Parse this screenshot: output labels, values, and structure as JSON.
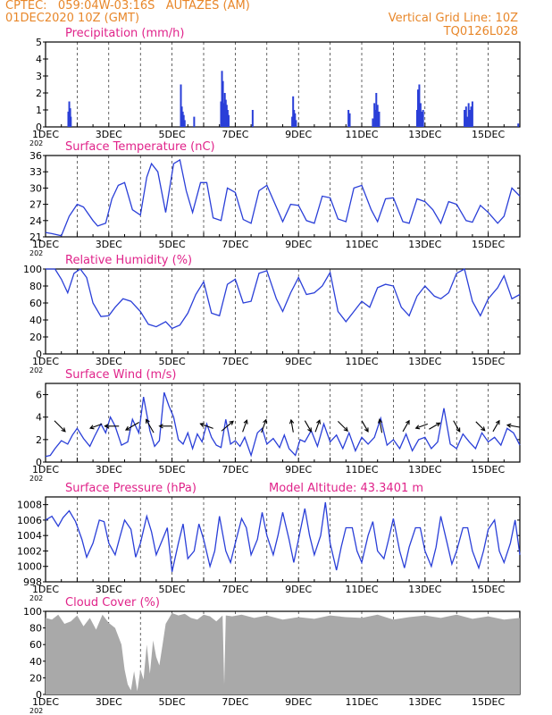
{
  "header": {
    "station_line": "CPTEC:   059:04W-03:16S   AUTAZES (AM)",
    "date_line": "01DEC2020 10Z (GMT)",
    "grid_note": "Vertical Grid Line: 10Z",
    "model_code": "TQ0126L028"
  },
  "colors": {
    "header": "#e8872a",
    "title": "#e0238a",
    "line": "#2a3fd8",
    "bar": "#2a3fd8",
    "cloud": "#a9a9a9"
  },
  "x_axis": {
    "start_day": 1,
    "end_day": 16,
    "tick_labels": [
      {
        "day": 1,
        "label": "1DEC"
      },
      {
        "day": 3,
        "label": "3DEC"
      },
      {
        "day": 5,
        "label": "5DEC"
      },
      {
        "day": 7,
        "label": "7DEC"
      },
      {
        "day": 9,
        "label": "9DEC"
      },
      {
        "day": 11,
        "label": "11DEC"
      },
      {
        "day": 13,
        "label": "13DEC"
      },
      {
        "day": 15,
        "label": "15DEC"
      }
    ],
    "sub_label": "202"
  },
  "chart_data": [
    {
      "type": "bar",
      "title": "Precipitation (mm/h)",
      "ylim": [
        0,
        5
      ],
      "yticks": [
        0,
        1,
        2,
        3,
        4,
        5
      ],
      "x_unit": "day",
      "x": [
        1.72,
        1.75,
        1.78,
        1.8,
        5.28,
        5.31,
        5.34,
        5.37,
        5.4,
        5.7,
        6.55,
        6.58,
        6.61,
        6.64,
        6.67,
        6.7,
        6.73,
        6.76,
        6.79,
        7.55,
        8.8,
        8.83,
        8.86,
        8.89,
        8.92,
        10.58,
        10.62,
        11.35,
        11.4,
        11.43,
        11.46,
        11.5,
        11.55,
        12.75,
        12.78,
        12.82,
        12.86,
        12.9,
        12.94,
        14.25,
        14.3,
        14.34,
        14.38,
        14.42,
        14.46,
        14.5,
        15.95
      ],
      "values": [
        0.9,
        1.5,
        1.1,
        0.6,
        2.5,
        1.2,
        0.9,
        0.7,
        0.4,
        0.6,
        1.5,
        3.3,
        2.7,
        1.4,
        2.0,
        1.6,
        1.3,
        1.0,
        0.7,
        1.0,
        0.6,
        1.8,
        1.0,
        0.8,
        0.4,
        1.0,
        0.8,
        0.5,
        1.4,
        1.0,
        2.0,
        1.3,
        0.9,
        1.0,
        2.2,
        2.5,
        1.4,
        0.9,
        1.0,
        1.0,
        1.2,
        0.6,
        1.4,
        1.0,
        1.2,
        1.5,
        0.2
      ]
    },
    {
      "type": "line",
      "title": "Surface Temperature (nC)",
      "ylim": [
        21,
        36
      ],
      "yticks": [
        21,
        24,
        27,
        30,
        33,
        36
      ],
      "x_unit": "day",
      "x": [
        1.0,
        1.2,
        1.5,
        1.75,
        2.0,
        2.2,
        2.5,
        2.65,
        2.9,
        3.1,
        3.3,
        3.5,
        3.75,
        4.0,
        4.2,
        4.35,
        4.55,
        4.8,
        5.05,
        5.25,
        5.45,
        5.65,
        5.9,
        6.1,
        6.3,
        6.55,
        6.75,
        7.0,
        7.25,
        7.5,
        7.75,
        8.0,
        8.3,
        8.5,
        8.75,
        9.0,
        9.25,
        9.5,
        9.75,
        10.0,
        10.25,
        10.5,
        10.75,
        11.0,
        11.3,
        11.5,
        11.75,
        12.0,
        12.3,
        12.5,
        12.75,
        13.0,
        13.25,
        13.5,
        13.75,
        14.0,
        14.3,
        14.5,
        14.75,
        15.0,
        15.3,
        15.5,
        15.75,
        16.0
      ],
      "values": [
        21.8,
        21.6,
        21.2,
        24.8,
        27.0,
        26.5,
        24.0,
        23.0,
        23.5,
        28.0,
        30.5,
        31.0,
        26.0,
        25.0,
        32.0,
        34.5,
        33.0,
        25.5,
        34.5,
        35.2,
        29.5,
        25.5,
        31.0,
        31.0,
        24.5,
        24.0,
        30.0,
        29.2,
        24.2,
        23.5,
        29.5,
        30.5,
        26.5,
        23.8,
        27.0,
        26.8,
        24.0,
        23.5,
        28.5,
        28.2,
        24.3,
        23.8,
        30.0,
        30.5,
        26.0,
        23.8,
        28.0,
        28.2,
        23.8,
        23.5,
        28.0,
        27.5,
        26.0,
        23.5,
        27.5,
        27.0,
        24.0,
        23.7,
        26.8,
        25.5,
        23.5,
        24.8,
        30.0,
        28.5
      ]
    },
    {
      "type": "line",
      "title": "Relative Humidity (%)",
      "ylim": [
        0,
        100
      ],
      "yticks": [
        0,
        20,
        40,
        60,
        80,
        100
      ],
      "x_unit": "day",
      "x": [
        1.0,
        1.3,
        1.5,
        1.7,
        1.9,
        2.1,
        2.3,
        2.5,
        2.75,
        3.0,
        3.2,
        3.45,
        3.7,
        4.0,
        4.25,
        4.5,
        4.8,
        5.0,
        5.25,
        5.5,
        5.75,
        6.0,
        6.25,
        6.5,
        6.75,
        7.0,
        7.25,
        7.5,
        7.75,
        8.0,
        8.3,
        8.5,
        8.75,
        9.0,
        9.25,
        9.5,
        9.75,
        10.0,
        10.25,
        10.5,
        10.75,
        11.0,
        11.25,
        11.5,
        11.75,
        12.0,
        12.25,
        12.5,
        12.75,
        13.0,
        13.3,
        13.5,
        13.75,
        14.0,
        14.25,
        14.5,
        14.75,
        15.0,
        15.3,
        15.5,
        15.75,
        16.0
      ],
      "values": [
        100,
        100,
        88,
        72,
        95,
        100,
        90,
        60,
        44,
        45,
        55,
        65,
        62,
        50,
        35,
        32,
        38,
        30,
        34,
        48,
        70,
        85,
        48,
        45,
        82,
        88,
        60,
        62,
        95,
        98,
        65,
        50,
        72,
        90,
        70,
        72,
        80,
        96,
        50,
        38,
        50,
        62,
        55,
        78,
        82,
        80,
        55,
        45,
        68,
        80,
        68,
        65,
        72,
        95,
        100,
        62,
        45,
        65,
        78,
        92,
        65,
        70
      ]
    },
    {
      "type": "line",
      "title": "Surface Wind (m/s)",
      "ylim": [
        0,
        7
      ],
      "yticks": [
        0,
        2,
        4,
        6
      ],
      "x_unit": "day",
      "x": [
        1.0,
        1.15,
        1.3,
        1.5,
        1.7,
        1.85,
        2.0,
        2.2,
        2.4,
        2.55,
        2.75,
        2.9,
        3.05,
        3.2,
        3.4,
        3.6,
        3.75,
        3.95,
        4.1,
        4.3,
        4.45,
        4.6,
        4.75,
        4.9,
        5.05,
        5.2,
        5.35,
        5.5,
        5.65,
        5.8,
        5.95,
        6.1,
        6.25,
        6.4,
        6.55,
        6.7,
        6.85,
        7.0,
        7.15,
        7.3,
        7.5,
        7.7,
        7.85,
        8.0,
        8.2,
        8.4,
        8.55,
        8.7,
        8.9,
        9.05,
        9.2,
        9.4,
        9.6,
        9.8,
        10.0,
        10.2,
        10.4,
        10.6,
        10.8,
        11.0,
        11.2,
        11.4,
        11.6,
        11.8,
        12.0,
        12.2,
        12.4,
        12.6,
        12.8,
        13.0,
        13.2,
        13.4,
        13.6,
        13.8,
        14.0,
        14.2,
        14.4,
        14.6,
        14.8,
        15.0,
        15.2,
        15.4,
        15.6,
        15.8,
        16.0
      ],
      "values": [
        0.5,
        0.6,
        1.2,
        1.9,
        1.6,
        2.4,
        3.0,
        2.1,
        1.4,
        2.3,
        3.4,
        2.6,
        4.0,
        3.2,
        1.5,
        1.8,
        3.8,
        2.6,
        5.8,
        2.8,
        1.4,
        1.9,
        6.2,
        5.0,
        4.0,
        2.0,
        1.6,
        2.6,
        1.2,
        2.5,
        1.8,
        3.4,
        2.2,
        1.5,
        1.3,
        3.8,
        1.6,
        1.9,
        1.4,
        2.2,
        0.6,
        2.6,
        3.0,
        1.6,
        2.1,
        1.3,
        2.4,
        1.2,
        0.6,
        2.0,
        1.8,
        2.8,
        1.4,
        3.4,
        1.8,
        2.4,
        1.2,
        2.6,
        1.0,
        2.2,
        1.6,
        2.2,
        3.9,
        1.5,
        2.0,
        1.2,
        2.5,
        1.0,
        2.0,
        2.2,
        1.2,
        1.8,
        4.8,
        1.6,
        1.2,
        2.5,
        1.8,
        1.2,
        2.6,
        1.8,
        2.2,
        1.5,
        3.0,
        2.6,
        1.5
      ],
      "arrows": [
        {
          "day": 1.45,
          "speed": 1.5,
          "angle": 315
        },
        {
          "day": 2.6,
          "speed": 1.0,
          "angle": 200
        },
        {
          "day": 3.1,
          "speed": 1.3,
          "angle": 180
        },
        {
          "day": 3.75,
          "speed": 1.5,
          "angle": 210
        },
        {
          "day": 4.3,
          "speed": 1.5,
          "angle": 120
        },
        {
          "day": 4.8,
          "speed": 1.0,
          "angle": 180
        },
        {
          "day": 6.1,
          "speed": 1.2,
          "angle": 160
        },
        {
          "day": 6.75,
          "speed": 1.5,
          "angle": 40
        },
        {
          "day": 7.3,
          "speed": 1.0,
          "angle": 70
        },
        {
          "day": 7.9,
          "speed": 1.2,
          "angle": 70
        },
        {
          "day": 8.8,
          "speed": 1.0,
          "angle": 100
        },
        {
          "day": 9.3,
          "speed": 1.0,
          "angle": 300
        },
        {
          "day": 9.6,
          "speed": 1.0,
          "angle": 70
        },
        {
          "day": 10.4,
          "speed": 1.2,
          "angle": 315
        },
        {
          "day": 11.1,
          "speed": 1.0,
          "angle": 300
        },
        {
          "day": 11.6,
          "speed": 1.2,
          "angle": 100
        },
        {
          "day": 12.4,
          "speed": 1.0,
          "angle": 60
        },
        {
          "day": 12.9,
          "speed": 1.0,
          "angle": 200
        },
        {
          "day": 13.3,
          "speed": 1.0,
          "angle": 30
        },
        {
          "day": 14.0,
          "speed": 1.0,
          "angle": 300
        },
        {
          "day": 14.75,
          "speed": 1.0,
          "angle": 315
        },
        {
          "day": 15.25,
          "speed": 1.0,
          "angle": 60
        },
        {
          "day": 15.8,
          "speed": 1.0,
          "angle": 170
        }
      ]
    },
    {
      "type": "line",
      "title": "Surface Pressure (hPa)",
      "annotation": "Model Altitude: 43.3401 m",
      "ylim": [
        998,
        1009
      ],
      "yticks": [
        998,
        1000,
        1002,
        1004,
        1006,
        1008
      ],
      "x_unit": "day",
      "x": [
        1.0,
        1.2,
        1.4,
        1.55,
        1.75,
        1.95,
        2.15,
        2.3,
        2.5,
        2.7,
        2.85,
        3.0,
        3.2,
        3.35,
        3.5,
        3.7,
        3.85,
        4.0,
        4.2,
        4.35,
        4.5,
        4.7,
        4.85,
        5.0,
        5.2,
        5.35,
        5.5,
        5.7,
        5.85,
        6.0,
        6.2,
        6.35,
        6.5,
        6.7,
        6.85,
        7.0,
        7.2,
        7.35,
        7.5,
        7.7,
        7.85,
        8.0,
        8.2,
        8.35,
        8.5,
        8.7,
        8.85,
        9.0,
        9.2,
        9.35,
        9.5,
        9.7,
        9.85,
        10.0,
        10.2,
        10.35,
        10.5,
        10.7,
        10.85,
        11.0,
        11.2,
        11.35,
        11.5,
        11.7,
        11.85,
        12.0,
        12.2,
        12.35,
        12.5,
        12.7,
        12.85,
        13.0,
        13.2,
        13.35,
        13.5,
        13.7,
        13.85,
        14.0,
        14.2,
        14.35,
        14.5,
        14.7,
        14.85,
        15.0,
        15.2,
        15.35,
        15.5,
        15.7,
        15.85,
        16.0
      ],
      "values": [
        1006.0,
        1006.5,
        1005.2,
        1006.3,
        1007.2,
        1005.8,
        1003.5,
        1001.2,
        1003.0,
        1006.0,
        1005.8,
        1003.0,
        1001.5,
        1003.8,
        1006.0,
        1004.8,
        1001.2,
        1003.0,
        1006.5,
        1004.5,
        1001.5,
        1003.5,
        1005.0,
        999.3,
        1003.0,
        1005.5,
        1001.0,
        1002.0,
        1005.5,
        1003.5,
        1000.0,
        1002.0,
        1006.5,
        1002.0,
        1000.5,
        1003.0,
        1006.2,
        1005.0,
        1001.5,
        1003.5,
        1007.0,
        1004.0,
        1001.5,
        1004.0,
        1007.0,
        1003.5,
        1000.5,
        1003.5,
        1007.5,
        1004.0,
        1001.5,
        1004.0,
        1008.3,
        1003.0,
        999.5,
        1002.5,
        1005.0,
        1005.0,
        1002.0,
        1000.5,
        1004.0,
        1005.8,
        1002.0,
        1001.0,
        1003.5,
        1006.2,
        1002.0,
        999.8,
        1002.5,
        1005.0,
        1005.0,
        1002.0,
        1000.0,
        1002.5,
        1006.5,
        1003.0,
        1000.3,
        1002.0,
        1005.0,
        1005.0,
        1002.0,
        999.8,
        1002.0,
        1004.8,
        1006.0,
        1002.0,
        1000.5,
        1003.0,
        1006.0,
        1001.5
      ]
    },
    {
      "type": "area",
      "title": "Cloud Cover (%)",
      "ylim": [
        0,
        100
      ],
      "yticks": [
        0,
        20,
        40,
        60,
        80,
        100
      ],
      "x_unit": "day",
      "x": [
        1.0,
        1.2,
        1.4,
        1.6,
        1.8,
        2.0,
        2.2,
        2.4,
        2.6,
        2.8,
        3.0,
        3.2,
        3.4,
        3.5,
        3.6,
        3.7,
        3.8,
        3.9,
        4.0,
        4.1,
        4.2,
        4.3,
        4.4,
        4.5,
        4.6,
        4.7,
        4.8,
        5.0,
        5.2,
        5.4,
        5.6,
        5.8,
        6.0,
        6.2,
        6.4,
        6.6,
        6.65,
        6.7,
        6.9,
        7.2,
        7.6,
        8.0,
        8.5,
        9.0,
        9.5,
        10.0,
        10.5,
        11.0,
        11.5,
        12.0,
        12.5,
        13.0,
        13.5,
        14.0,
        14.5,
        15.0,
        15.5,
        16.0
      ],
      "values": [
        92,
        90,
        96,
        85,
        88,
        95,
        82,
        92,
        78,
        96,
        86,
        80,
        60,
        30,
        12,
        5,
        28,
        4,
        30,
        18,
        60,
        25,
        65,
        45,
        35,
        60,
        85,
        98,
        95,
        97,
        92,
        90,
        96,
        94,
        88,
        95,
        12,
        95,
        94,
        96,
        92,
        95,
        90,
        93,
        91,
        95,
        93,
        92,
        96,
        90,
        93,
        95,
        92,
        96,
        91,
        94,
        90,
        92
      ]
    }
  ]
}
